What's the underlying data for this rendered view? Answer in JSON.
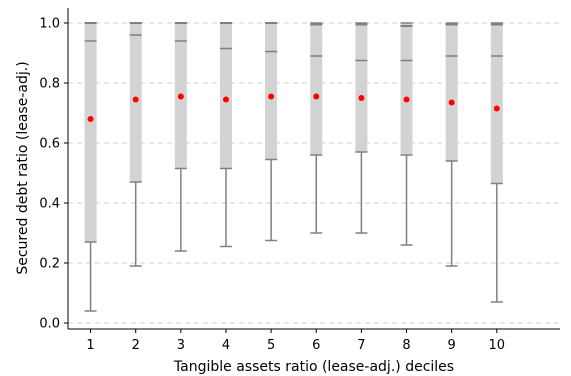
{
  "chart_data": {
    "type": "boxplot",
    "xlabel": "Tangible assets ratio (lease-adj.) deciles",
    "ylabel": "Secured debt ratio (lease-adj.)",
    "ylim": [
      -0.02,
      1.05
    ],
    "yticks": [
      "0.0",
      "0.2",
      "0.4",
      "0.6",
      "0.8",
      "1.0"
    ],
    "grid": "horizontal-dashed",
    "categories": [
      "1",
      "2",
      "3",
      "4",
      "5",
      "6",
      "7",
      "8",
      "9",
      "10"
    ],
    "whisker_low": [
      0.04,
      0.19,
      0.24,
      0.255,
      0.275,
      0.3,
      0.3,
      0.26,
      0.19,
      0.07
    ],
    "q1": [
      0.27,
      0.47,
      0.515,
      0.515,
      0.545,
      0.56,
      0.57,
      0.56,
      0.54,
      0.465
    ],
    "median": [
      1.0,
      1.0,
      1.0,
      1.0,
      1.0,
      0.995,
      0.995,
      0.99,
      0.995,
      0.995
    ],
    "q3": [
      0.94,
      0.96,
      0.94,
      0.915,
      0.905,
      0.89,
      0.875,
      0.875,
      0.89,
      0.89
    ],
    "whisker_high": [
      1.0,
      1.0,
      1.0,
      1.0,
      1.0,
      1.0,
      1.0,
      1.0,
      1.0,
      1.0
    ],
    "mean": [
      0.68,
      0.745,
      0.755,
      0.745,
      0.755,
      0.755,
      0.75,
      0.745,
      0.735,
      0.715
    ],
    "colors": {
      "box": "#d3d3d3",
      "line": "#808080",
      "mean": "#ff0000",
      "grid": "#cccccc"
    }
  }
}
